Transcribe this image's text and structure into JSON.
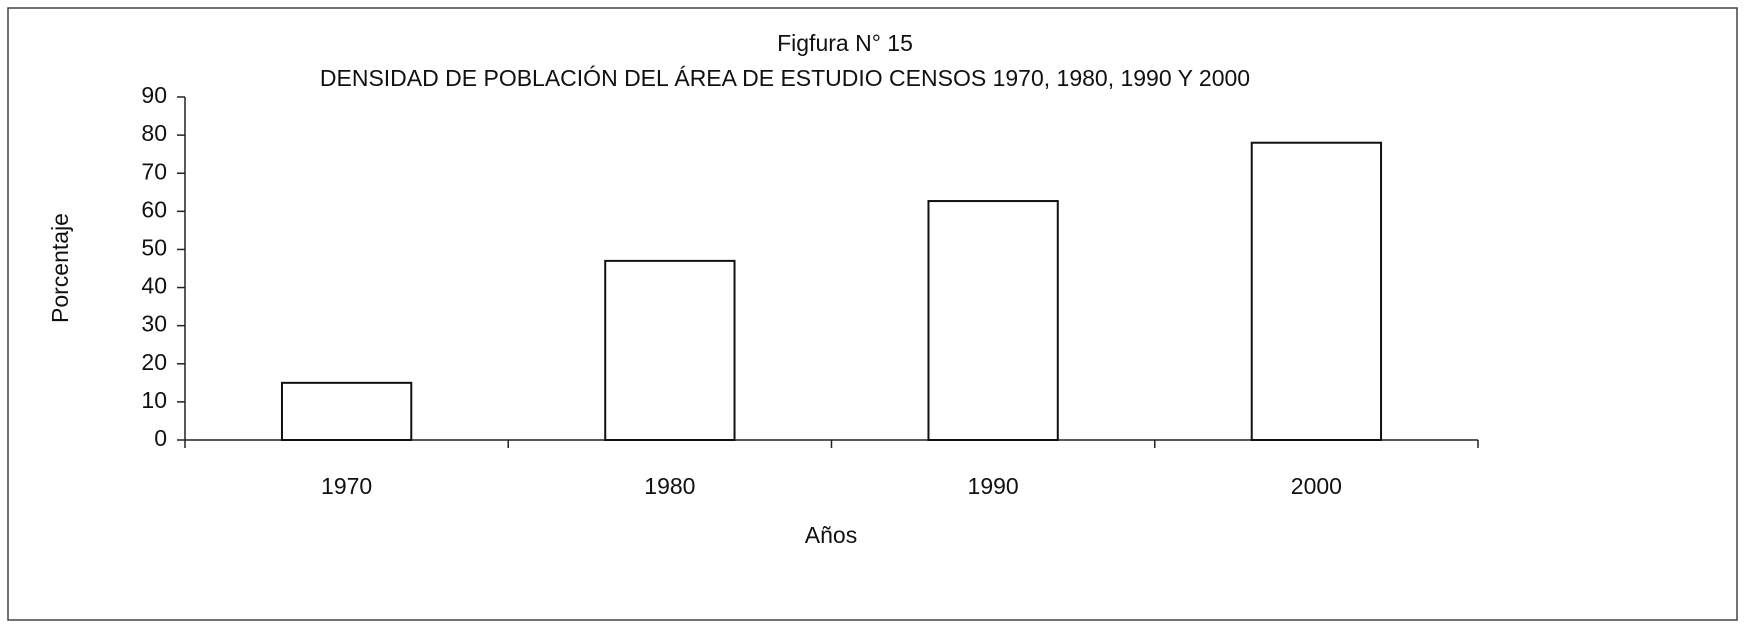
{
  "chart_data": {
    "type": "bar",
    "title": "Figfura N°  15",
    "subtitle": "DENSIDAD DE POBLACIÓN DEL  ÁREA DE ESTUDIO   CENSOS 1970, 1980, 1990 Y 2000",
    "x_label": "Años",
    "y_label": "Porcentaje",
    "categories": [
      "1970",
      "1980",
      "1990",
      "2000"
    ],
    "values": [
      15,
      47,
      62.7,
      78
    ],
    "color": "#ffffff",
    "ylim": [
      0,
      90
    ],
    "yticks": [
      0,
      10,
      20,
      30,
      40,
      50,
      60,
      70,
      80,
      90
    ],
    "grid": false
  }
}
